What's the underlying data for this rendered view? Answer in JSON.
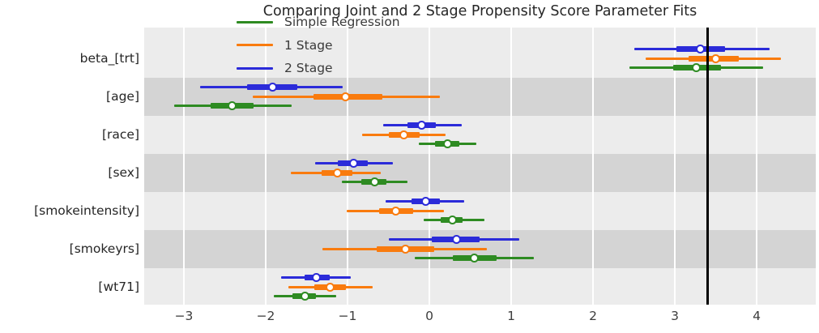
{
  "figure": {
    "title": "Comparing Joint and 2 Stage Propensity Score Parameter Fits"
  },
  "chart_data": {
    "type": "scatter",
    "subtype": "horizontal-forest-plot-with-error-bars",
    "title": "Comparing Joint and 2 Stage Propensity Score Parameter Fits",
    "xlabel": "",
    "ylabel": "",
    "categories": [
      "beta_[trt]",
      "[age]",
      "[race]",
      "[sex]",
      "[smokeintensity]",
      "[smokeyrs]",
      "[wt71]"
    ],
    "x_ticks": [
      {
        "value": -3,
        "label": "−3"
      },
      {
        "value": -2,
        "label": "−2"
      },
      {
        "value": -1,
        "label": "−1"
      },
      {
        "value": 0,
        "label": "0"
      },
      {
        "value": 1,
        "label": "1"
      },
      {
        "value": 2,
        "label": "2"
      },
      {
        "value": 3,
        "label": "3"
      },
      {
        "value": 4,
        "label": "4"
      }
    ],
    "xlim": [
      -3.49,
      4.72
    ],
    "reference_line_x": 3.4,
    "reference_line_color": "#000000",
    "grid": {
      "vertical_gridlines": true,
      "gridline_color": "#ffffff"
    },
    "background": {
      "plot_color": "#ececec",
      "band_dark_color": "#d4d4d4",
      "shaded_categories": [
        "[age]",
        "[sex]",
        "[smokeyrs]"
      ]
    },
    "marker": {
      "style": "open-circle",
      "fill": "#ffffff"
    },
    "legend": {
      "position": "upper-center-left-inside",
      "frame": false
    },
    "series": [
      {
        "name": "Simple Regression",
        "color": "#2e8b22",
        "row_offset": 1,
        "estimates": [
          3.26,
          -2.41,
          0.22,
          -0.67,
          0.28,
          0.55,
          -1.52
        ],
        "ci_inner": [
          [
            2.98,
            3.56
          ],
          [
            -2.67,
            -2.15
          ],
          [
            0.07,
            0.37
          ],
          [
            -0.83,
            -0.52
          ],
          [
            0.14,
            0.41
          ],
          [
            0.29,
            0.82
          ],
          [
            -1.67,
            -1.39
          ]
        ],
        "ci_outer": [
          [
            2.45,
            4.08
          ],
          [
            -3.12,
            -1.68
          ],
          [
            -0.13,
            0.57
          ],
          [
            -1.07,
            -0.27
          ],
          [
            -0.07,
            0.67
          ],
          [
            -0.18,
            1.28
          ],
          [
            -1.9,
            -1.14
          ]
        ]
      },
      {
        "name": "1 Stage",
        "color": "#f97b0e",
        "row_offset": 0,
        "estimates": [
          3.5,
          -1.02,
          -0.31,
          -1.12,
          -0.41,
          -0.29,
          -1.21
        ],
        "ci_inner": [
          [
            3.17,
            3.78
          ],
          [
            -1.42,
            -0.57
          ],
          [
            -0.5,
            -0.12
          ],
          [
            -1.32,
            -0.94
          ],
          [
            -0.61,
            -0.2
          ],
          [
            -0.64,
            0.06
          ],
          [
            -1.41,
            -1.02
          ]
        ],
        "ci_outer": [
          [
            2.64,
            4.3
          ],
          [
            -2.16,
            0.13
          ],
          [
            -0.82,
            0.2
          ],
          [
            -1.69,
            -0.59
          ],
          [
            -1.01,
            0.18
          ],
          [
            -1.31,
            0.7
          ],
          [
            -1.72,
            -0.69
          ]
        ]
      },
      {
        "name": "2 Stage",
        "color": "#2b2bd9",
        "row_offset": -1,
        "estimates": [
          3.31,
          -1.92,
          -0.09,
          -0.93,
          -0.04,
          0.33,
          -1.38
        ],
        "ci_inner": [
          [
            3.02,
            3.61
          ],
          [
            -2.23,
            -1.61
          ],
          [
            -0.27,
            0.08
          ],
          [
            -1.12,
            -0.75
          ],
          [
            -0.22,
            0.13
          ],
          [
            0.03,
            0.61
          ],
          [
            -1.52,
            -1.22
          ]
        ],
        "ci_outer": [
          [
            2.5,
            4.16
          ],
          [
            -2.8,
            -1.06
          ],
          [
            -0.56,
            0.4
          ],
          [
            -1.4,
            -0.45
          ],
          [
            -0.53,
            0.43
          ],
          [
            -0.5,
            1.1
          ],
          [
            -1.81,
            -0.96
          ]
        ]
      }
    ]
  }
}
